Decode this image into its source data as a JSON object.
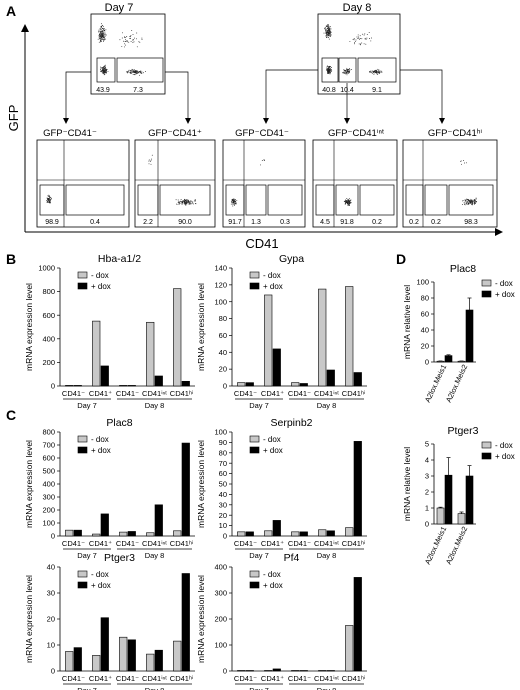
{
  "panel_a": {
    "label": "A",
    "y_axis": "GFP",
    "x_axis": "CD41",
    "day7": {
      "title": "Day 7",
      "gates": [
        "43.9",
        "7.3"
      ]
    },
    "day8": {
      "title": "Day 8",
      "gates": [
        "40.8",
        "10.4",
        "9.1"
      ]
    },
    "subplots": [
      {
        "title": "GFP⁻CD41⁻",
        "values": [
          "98.9",
          "0.4"
        ]
      },
      {
        "title": "GFP⁻CD41⁺",
        "values": [
          "2.2",
          "90.0"
        ]
      },
      {
        "title": "GFP⁻CD41⁻",
        "values": [
          "91.7",
          "1.3",
          "0.3"
        ]
      },
      {
        "title": "GFP⁻CD41ⁱⁿᵗ",
        "values": [
          "4.5",
          "91.8",
          "0.2"
        ]
      },
      {
        "title": "GFP⁻CD41ʰⁱ",
        "values": [
          "0.2",
          "0.2",
          "98.3"
        ]
      }
    ],
    "tick_label": "10²"
  },
  "panel_b_label": "B",
  "panel_c_label": "C",
  "panel_d_label": "D",
  "legend": {
    "minus": "- dox",
    "plus": "+ dox"
  },
  "categories": [
    "CD41⁻",
    "CD41⁺",
    "CD41⁻",
    "CD41ⁱⁿᵗ",
    "CD41ʰⁱ"
  ],
  "day_labels": [
    "Day 7",
    "Day 8"
  ],
  "ylabel": "mRNA expression level",
  "d_ylabel": "mRNA relative level",
  "d_categories": [
    "A2lox.Meis1",
    "A2lox.Meis2"
  ],
  "colors": {
    "minus": "#c8c8c8",
    "plus": "#000000"
  },
  "chart_data": [
    {
      "type": "bar",
      "title": "Hba-a1/2",
      "ylabel": "mRNA expression level",
      "ylim": [
        0,
        1000
      ],
      "ticks": [
        0,
        200,
        400,
        600,
        800,
        1000
      ],
      "categories": [
        "CD41⁻",
        "CD41⁺",
        "CD41⁻",
        "CD41ⁱⁿᵗ",
        "CD41ʰⁱ"
      ],
      "series": [
        {
          "name": "- dox",
          "values": [
            5,
            550,
            5,
            540,
            825
          ]
        },
        {
          "name": "+ dox",
          "values": [
            5,
            170,
            5,
            85,
            40
          ]
        }
      ]
    },
    {
      "type": "bar",
      "title": "Gypa",
      "ylabel": "mRNA expression level",
      "ylim": [
        0,
        140
      ],
      "ticks": [
        0,
        20,
        40,
        60,
        80,
        100,
        120,
        140
      ],
      "categories": [
        "CD41⁻",
        "CD41⁺",
        "CD41⁻",
        "CD41ⁱⁿᵗ",
        "CD41ʰⁱ"
      ],
      "series": [
        {
          "name": "- dox",
          "values": [
            4,
            108,
            4,
            115,
            118
          ]
        },
        {
          "name": "+ dox",
          "values": [
            4,
            44,
            3,
            19,
            16
          ]
        }
      ]
    },
    {
      "type": "bar",
      "title": "Plac8",
      "ylabel": "mRNA expression level",
      "ylim": [
        0,
        800
      ],
      "ticks": [
        0,
        100,
        200,
        300,
        400,
        500,
        600,
        700,
        800
      ],
      "categories": [
        "CD41⁻",
        "CD41⁺",
        "CD41⁻",
        "CD41ⁱⁿᵗ",
        "CD41ʰⁱ"
      ],
      "series": [
        {
          "name": "- dox",
          "values": [
            45,
            15,
            30,
            25,
            40
          ]
        },
        {
          "name": "+ dox",
          "values": [
            45,
            170,
            35,
            240,
            715
          ]
        }
      ]
    },
    {
      "type": "bar",
      "title": "Serpinb2",
      "ylabel": "mRNA expression level",
      "ylim": [
        0,
        100
      ],
      "ticks": [
        0,
        10,
        20,
        30,
        40,
        50,
        60,
        70,
        80,
        90,
        100
      ],
      "categories": [
        "CD41⁻",
        "CD41⁺",
        "CD41⁻",
        "CD41ⁱⁿᵗ",
        "CD41ʰⁱ"
      ],
      "series": [
        {
          "name": "- dox",
          "values": [
            4,
            5,
            4,
            6,
            8
          ]
        },
        {
          "name": "+ dox",
          "values": [
            4,
            15,
            4,
            5,
            91
          ]
        }
      ]
    },
    {
      "type": "bar",
      "title": "Ptger3",
      "ylabel": "mRNA expression level",
      "ylim": [
        0,
        40
      ],
      "ticks": [
        0,
        10,
        20,
        30,
        40
      ],
      "categories": [
        "CD41⁻",
        "CD41⁺",
        "CD41⁻",
        "CD41ⁱⁿᵗ",
        "CD41ʰⁱ"
      ],
      "series": [
        {
          "name": "- dox",
          "values": [
            7.5,
            6,
            13,
            6.5,
            11.5
          ]
        },
        {
          "name": "+ dox",
          "values": [
            9,
            20.5,
            12,
            8,
            37.5
          ]
        }
      ]
    },
    {
      "type": "bar",
      "title": "Pf4",
      "ylabel": "mRNA expression level",
      "ylim": [
        0,
        400
      ],
      "ticks": [
        0,
        100,
        200,
        300,
        400
      ],
      "categories": [
        "CD41⁻",
        "CD41⁺",
        "CD41⁻",
        "CD41ⁱⁿᵗ",
        "CD41ʰⁱ"
      ],
      "series": [
        {
          "name": "- dox",
          "values": [
            2,
            2,
            2,
            2,
            175
          ]
        },
        {
          "name": "+ dox",
          "values": [
            2,
            8,
            2,
            2,
            360
          ]
        }
      ]
    },
    {
      "type": "bar",
      "title": "Plac8",
      "ylabel": "mRNA relative level",
      "ylim": [
        0,
        100
      ],
      "ticks": [
        0,
        20,
        40,
        60,
        80,
        100
      ],
      "categories": [
        "A2lox.Meis1",
        "A2lox.Meis2"
      ],
      "series": [
        {
          "name": "- dox",
          "values": [
            1,
            1
          ],
          "errors": [
            0.3,
            0.3
          ]
        },
        {
          "name": "+ dox",
          "values": [
            8,
            65
          ],
          "errors": [
            1,
            15
          ]
        }
      ]
    },
    {
      "type": "bar",
      "title": "Ptger3",
      "ylabel": "mRNA relative level",
      "ylim": [
        0,
        5
      ],
      "ticks": [
        0,
        1,
        2,
        3,
        4,
        5
      ],
      "categories": [
        "A2lox.Meis1",
        "A2lox.Meis2"
      ],
      "series": [
        {
          "name": "- dox",
          "values": [
            1,
            0.65
          ],
          "errors": [
            0.05,
            0.1
          ]
        },
        {
          "name": "+ dox",
          "values": [
            3.05,
            3.0
          ],
          "errors": [
            1.1,
            0.65
          ]
        }
      ]
    }
  ]
}
